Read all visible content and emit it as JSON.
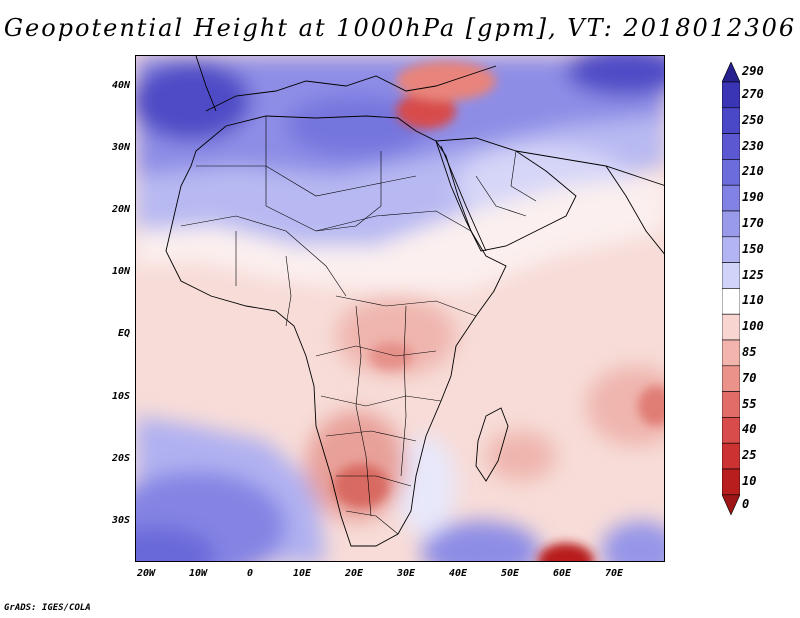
{
  "title": "Geopotential Height at 1000hPa [gpm], VT: 2018012306",
  "footer": "GrADS: IGES/COLA",
  "lat_labels": [
    "40N",
    "30N",
    "20N",
    "10N",
    "EQ",
    "10S",
    "20S",
    "30S"
  ],
  "lon_labels": [
    "20W",
    "10W",
    "0",
    "10E",
    "20E",
    "30E",
    "40E",
    "50E",
    "60E",
    "70E"
  ],
  "colorbar": {
    "levels": [
      "290",
      "270",
      "250",
      "230",
      "210",
      "190",
      "170",
      "150",
      "125",
      "110",
      "100",
      "85",
      "70",
      "55",
      "40",
      "25",
      "10",
      "0"
    ],
    "colors": [
      "#27208f",
      "#3a35b4",
      "#4b48c8",
      "#5b58d2",
      "#6d6cdc",
      "#8281e4",
      "#9a9aeb",
      "#b3b4f2",
      "#d2d3f8",
      "#ffffff",
      "#f9d5d2",
      "#f3b4ae",
      "#eb928b",
      "#e06d68",
      "#d84c4b",
      "#cd3232",
      "#b81e1e",
      "#9e1515"
    ]
  }
}
